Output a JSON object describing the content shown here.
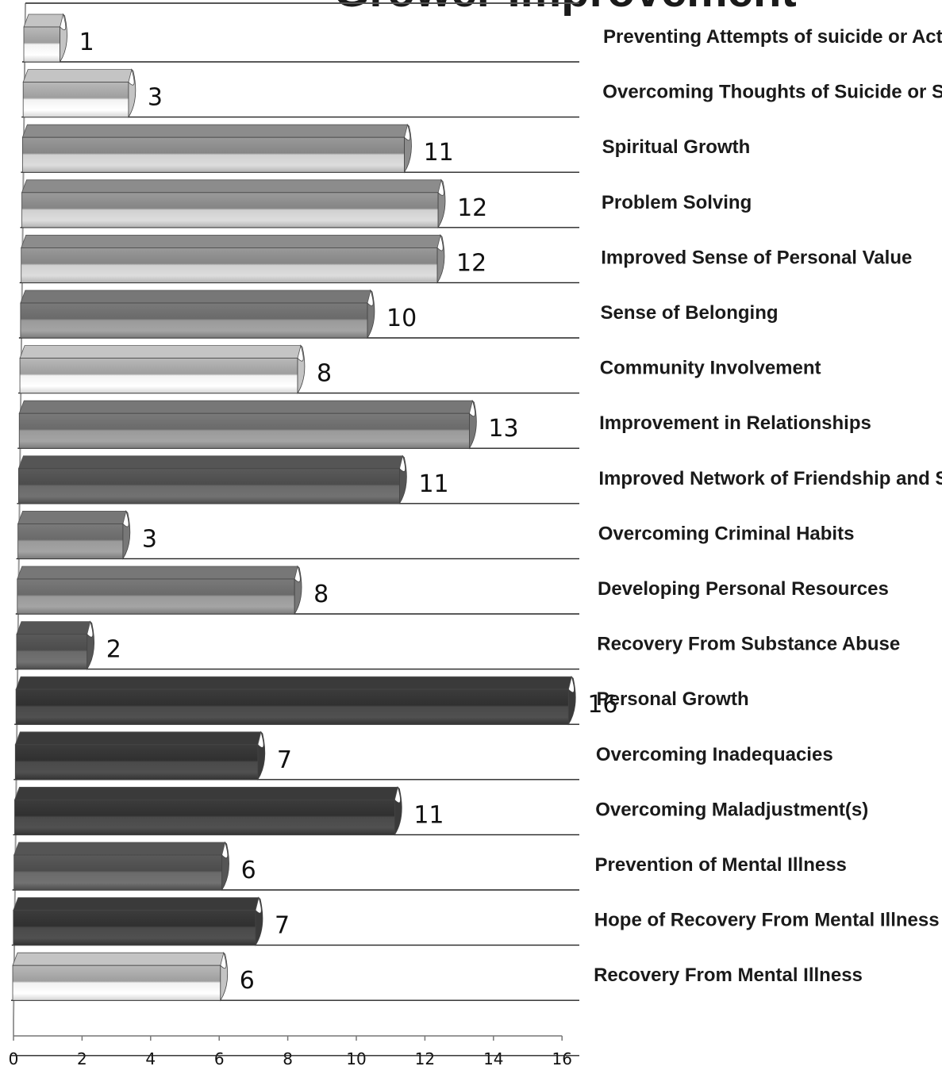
{
  "chart_data": {
    "type": "bar",
    "orientation": "horizontal",
    "style": "3d-cylinder",
    "title": "Grower Improvement",
    "categories": [
      "Preventing Attempts of suicide or Act",
      "Overcoming Thoughts of Suicide or Se",
      "Spiritual Growth",
      "Problem Solving",
      "Improved Sense of Personal Value",
      "Sense of Belonging",
      "Community Involvement",
      "Improvement in Relationships",
      "Improved Network of Friendship and S",
      "Overcoming Criminal Habits",
      "Developing  Personal Resources",
      "Recovery From Substance Abuse",
      "Personal Growth",
      "Overcoming Inadequacies",
      "Overcoming Maladjustment(s)",
      "Prevention of Mental Illness",
      "Hope of Recovery From Mental Illness",
      "Recovery From Mental Illness"
    ],
    "values": [
      1,
      3,
      11,
      12,
      12,
      10,
      8,
      13,
      11,
      3,
      8,
      2,
      16,
      7,
      11,
      6,
      7,
      6
    ],
    "data_labels": [
      "1",
      "3",
      "11",
      "12",
      "12",
      "10",
      "8",
      "13",
      "11",
      "3",
      "8",
      "2",
      "16",
      "7",
      "11",
      "6",
      "7",
      "6"
    ],
    "xlim": [
      0,
      16
    ],
    "x_ticks": [
      "0",
      "2",
      "4",
      "6",
      "8",
      "10",
      "12",
      "14",
      "16"
    ],
    "grid": true,
    "legend": "none",
    "colors": {
      "light": "#e8e8e8",
      "light_top": "#bdbdbd",
      "mid": "#8a8a8a",
      "mid_top": "#6e6e6e",
      "dark": "#4a4a4a",
      "dark_top": "#3a3a3a",
      "darkest": "#2a2a2a"
    }
  }
}
